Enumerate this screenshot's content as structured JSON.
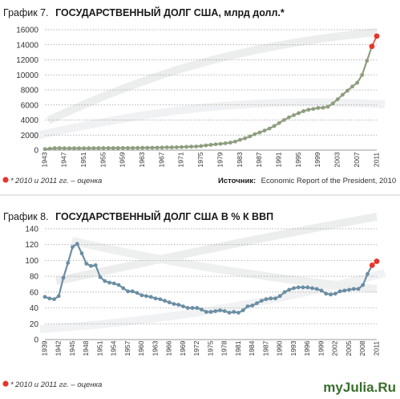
{
  "colors": {
    "line1": "#8e9e7e",
    "line2": "#6b8ea3",
    "marker": "#e8352a",
    "grid": "#9a9a9a",
    "bg_swirl": "#e9eaeb"
  },
  "chart_data": [
    {
      "type": "line",
      "title_prefix": "График 7.",
      "title": "ГОСУДАРСТВЕННЫЙ ДОЛГ США, млрд долл.*",
      "ylim": [
        0,
        16000
      ],
      "y_ticks": [
        "0",
        "2000",
        "4000",
        "6000",
        "8000",
        "10000",
        "12000",
        "14000",
        "16000"
      ],
      "x_ticks": [
        "1943",
        "1947",
        "1951",
        "1955",
        "1959",
        "1963",
        "1967",
        "1971",
        "1975",
        "1979",
        "1983",
        "1987",
        "1991",
        "1995",
        "1999",
        "2003",
        "2007",
        "2011"
      ],
      "grid": true,
      "series": [
        {
          "x": [
            1943,
            1944,
            1945,
            1946,
            1947,
            1948,
            1949,
            1950,
            1951,
            1952,
            1953,
            1954,
            1955,
            1956,
            1957,
            1958,
            1959,
            1960,
            1961,
            1962,
            1963,
            1964,
            1965,
            1966,
            1967,
            1968,
            1969,
            1970,
            1971,
            1972,
            1973,
            1974,
            1975,
            1976,
            1977,
            1978,
            1979,
            1980,
            1981,
            1982,
            1983,
            1984,
            1985,
            1986,
            1987,
            1988,
            1989,
            1990,
            1991,
            1992,
            1993,
            1994,
            1995,
            1996,
            1997,
            1998,
            1999,
            2000,
            2001,
            2002,
            2003,
            2004,
            2005,
            2006,
            2007,
            2008,
            2009
          ],
          "values": [
            143,
            204,
            260,
            271,
            257,
            252,
            253,
            257,
            255,
            259,
            266,
            271,
            274,
            273,
            272,
            280,
            287,
            291,
            293,
            303,
            311,
            317,
            322,
            328,
            341,
            370,
            368,
            381,
            408,
            436,
            466,
            484,
            542,
            629,
            706,
            777,
            829,
            909,
            995,
            1137,
            1372,
            1565,
            1818,
            2121,
            2346,
            2601,
            2868,
            3206,
            3598,
            4002,
            4351,
            4643,
            4921,
            5181,
            5369,
            5478,
            5606,
            5629,
            5770,
            6198,
            6760,
            7355,
            7905,
            8451,
            8951,
            9986,
            11876
          ]
        }
      ],
      "estimates": {
        "x": [
          2010,
          2011
        ],
        "values": [
          13786,
          15144
        ]
      },
      "note_marker": "*",
      "note": "2010 и 2011 гг. – оценка",
      "source_label": "Источник:",
      "source_text": "Economic Report of the President, 2010"
    },
    {
      "type": "line",
      "title_prefix": "График 8.",
      "title": "ГОСУДАРСТВЕННЫЙ ДОЛГ США В % К ВВП",
      "ylim": [
        0,
        140
      ],
      "y_ticks": [
        "0",
        "20",
        "40",
        "60",
        "80",
        "100",
        "120",
        "140"
      ],
      "x_ticks": [
        "1939",
        "1942",
        "1945",
        "1948",
        "1951",
        "1954",
        "1957",
        "1960",
        "1963",
        "1966",
        "1969",
        "1972",
        "1975",
        "1978",
        "1981",
        "1984",
        "1987",
        "1990",
        "1993",
        "1996",
        "1999",
        "2002",
        "2005",
        "2008",
        "2011"
      ],
      "grid": true,
      "series": [
        {
          "x": [
            1939,
            1940,
            1941,
            1942,
            1943,
            1944,
            1945,
            1946,
            1947,
            1948,
            1949,
            1950,
            1951,
            1952,
            1953,
            1954,
            1955,
            1956,
            1957,
            1958,
            1959,
            1960,
            1961,
            1962,
            1963,
            1964,
            1965,
            1966,
            1967,
            1968,
            1969,
            1970,
            1971,
            1972,
            1973,
            1974,
            1975,
            1976,
            1977,
            1978,
            1979,
            1980,
            1981,
            1982,
            1983,
            1984,
            1985,
            1986,
            1987,
            1988,
            1989,
            1990,
            1991,
            1992,
            1993,
            1994,
            1995,
            1996,
            1997,
            1998,
            1999,
            2000,
            2001,
            2002,
            2003,
            2004,
            2005,
            2006,
            2007,
            2008,
            2009
          ],
          "values": [
            54,
            52,
            51,
            55,
            78,
            97,
            117,
            121,
            109,
            96,
            93,
            94,
            79,
            74,
            72,
            71,
            69,
            65,
            61,
            61,
            59,
            56,
            55,
            54,
            52,
            51,
            49,
            47,
            45,
            44,
            42,
            40,
            40,
            40,
            38,
            35,
            35,
            36,
            37,
            36,
            34,
            35,
            34,
            37,
            42,
            43,
            46,
            49,
            51,
            52,
            52,
            55,
            60,
            63,
            65,
            66,
            66,
            66,
            65,
            64,
            62,
            58,
            57,
            58,
            61,
            62,
            63,
            64,
            64,
            69,
            83
          ]
        }
      ],
      "estimates": {
        "x": [
          2010,
          2011
        ],
        "values": [
          94,
          99
        ]
      },
      "note_marker": "*",
      "note": "2010 и 2011 гг. – оценка",
      "watermark": "myJulia.Ru"
    }
  ]
}
